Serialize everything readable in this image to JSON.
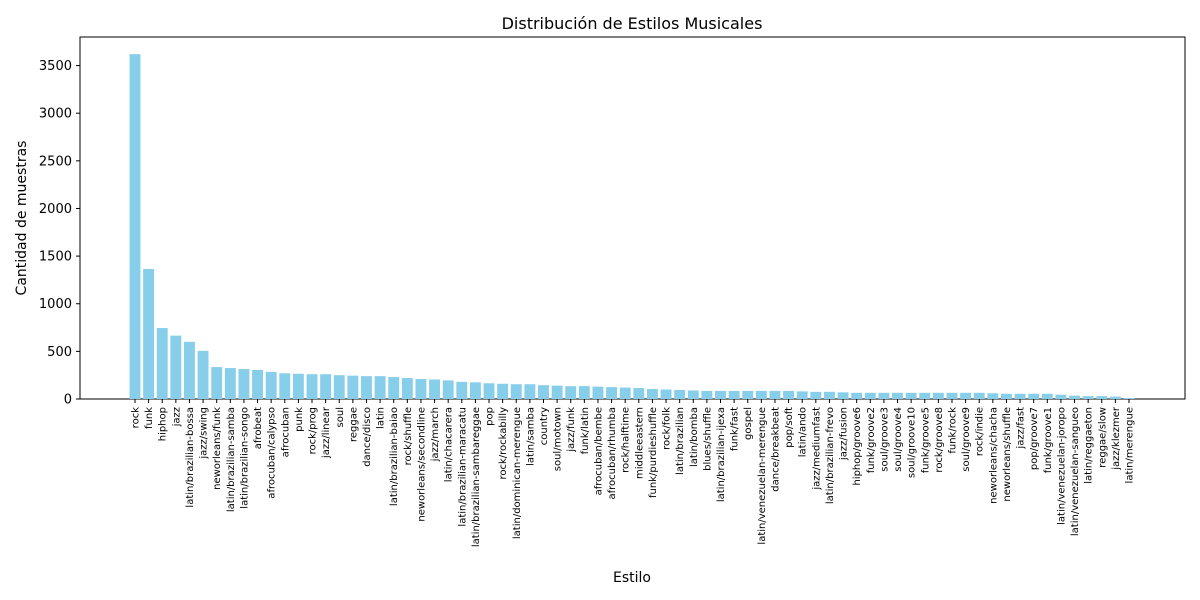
{
  "chart_data": {
    "type": "bar",
    "title": "Distribución de Estilos Musicales",
    "xlabel": "Estilo",
    "ylabel": "Cantidad de muestras",
    "ylim": [
      0,
      3800
    ],
    "yticks": [
      0,
      500,
      1000,
      1500,
      2000,
      2500,
      3000,
      3500
    ],
    "grid": false,
    "bar_color": "#87ceeb",
    "categories": [
      "rock",
      "funk",
      "hiphop",
      "jazz",
      "latin/brazilian-bossa",
      "jazz/swing",
      "neworleans/funk",
      "latin/brazilian-samba",
      "latin/brazilian-songo",
      "afrobeat",
      "afrocuban/calypso",
      "afrocuban",
      "punk",
      "rock/prog",
      "jazz/linear",
      "soul",
      "reggae",
      "dance/disco",
      "latin",
      "latin/brazilian-baiao",
      "rock/shuffle",
      "neworleans/secondline",
      "jazz/march",
      "latin/chacarera",
      "latin/brazilian-maracatu",
      "latin/brazilian-sambareggae",
      "pop",
      "rock/rockabilly",
      "latin/dominican-merengue",
      "latin/samba",
      "country",
      "soul/motown",
      "jazz/funk",
      "funk/latin",
      "afrocuban/bembe",
      "afrocuban/rhumba",
      "rock/halftime",
      "middleeastern",
      "funk/purdieshuffle",
      "rock/folk",
      "latin/brazilian",
      "latin/bomba",
      "blues/shuffle",
      "latin/brazilian-ijexa",
      "funk/fast",
      "gospel",
      "latin/venezuelan-merengue",
      "dance/breakbeat",
      "pop/soft",
      "latin/ando",
      "jazz/mediumfast",
      "latin/brazilian-frevo",
      "jazz/fusion",
      "hiphop/groove6",
      "funk/groove2",
      "soul/groove3",
      "soul/groove4",
      "soul/groove10",
      "funk/groove5",
      "rock/groove8",
      "funk/rock",
      "soul/groove9",
      "rock/indie",
      "neworleans/chacha",
      "neworleans/shuffle",
      "jazz/fast",
      "pop/groove7",
      "funk/groove1",
      "latin/venezuelan-joropo",
      "latin/venezuelan-sangueo",
      "latin/reggaeton",
      "reggae/slow",
      "jazz/klezmer",
      "latin/merengue"
    ],
    "values": [
      3620,
      1365,
      745,
      665,
      600,
      505,
      335,
      325,
      315,
      305,
      285,
      270,
      265,
      260,
      260,
      250,
      245,
      240,
      240,
      230,
      220,
      210,
      205,
      195,
      180,
      175,
      165,
      160,
      155,
      155,
      145,
      140,
      135,
      135,
      130,
      125,
      120,
      115,
      105,
      100,
      95,
      90,
      85,
      85,
      85,
      85,
      85,
      85,
      85,
      80,
      75,
      75,
      70,
      65,
      65,
      65,
      65,
      65,
      65,
      65,
      65,
      65,
      65,
      60,
      55,
      55,
      55,
      55,
      45,
      35,
      30,
      30,
      25,
      10
    ]
  }
}
